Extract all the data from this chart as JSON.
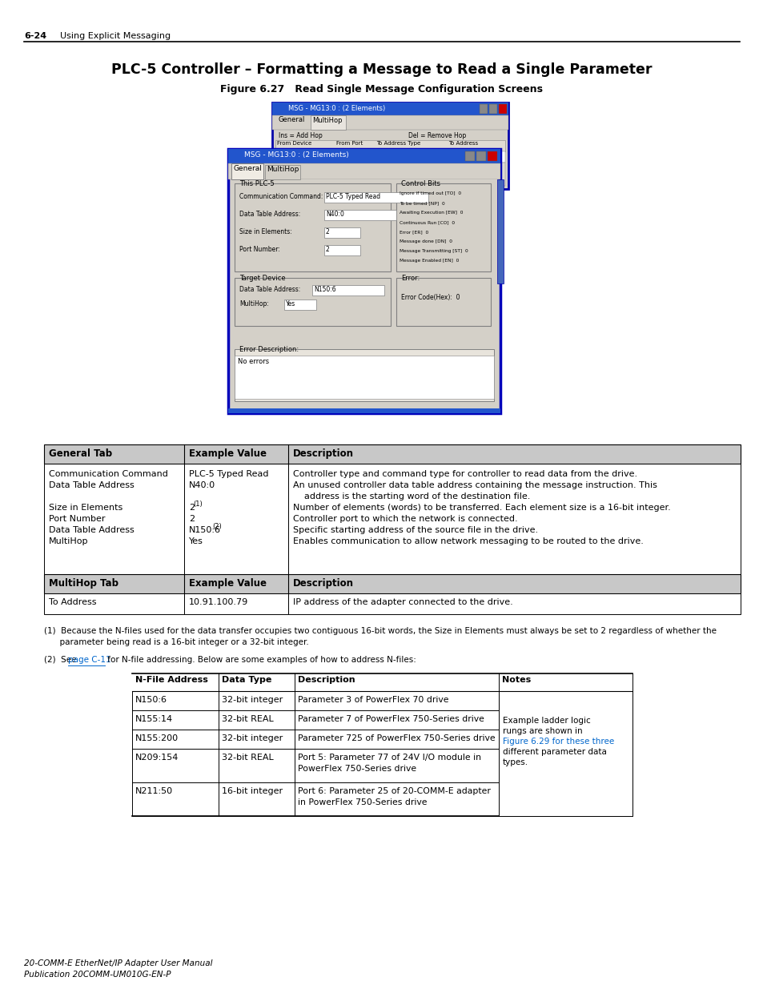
{
  "page_header_number": "6-24",
  "page_header_text": "Using Explicit Messaging",
  "main_title": "PLC-5 Controller – Formatting a Message to Read a Single Parameter",
  "figure_label": "Figure 6.27   Read Single Message Configuration Screens",
  "table1_headers": [
    "General Tab",
    "Example Value",
    "Description"
  ],
  "table1_row1_col1": [
    "Communication Command",
    "Data Table Address",
    "",
    "Size in Elements",
    "Port Number",
    "Data Table Address",
    "MultiHop"
  ],
  "table1_row1_col2_base": [
    "PLC-5 Typed Read",
    "N40:0",
    "",
    "2",
    "2",
    "N150:6",
    "Yes"
  ],
  "table1_row1_col2_sup": [
    "",
    "",
    "",
    "(1)",
    "",
    "(2)",
    ""
  ],
  "table1_row1_col3": [
    "Controller type and command type for controller to read data from the drive.",
    "An unused controller data table address containing the message instruction. This",
    "    address is the starting word of the destination file.",
    "Number of elements (words) to be transferred. Each element size is a 16-bit integer.",
    "Controller port to which the network is connected.",
    "Specific starting address of the source file in the drive.",
    "Enables communication to allow network messaging to be routed to the drive."
  ],
  "table1_row2_headers": [
    "MultiHop Tab",
    "Example Value",
    "Description"
  ],
  "table1_row2": [
    "To Address",
    "10.91.100.79",
    "IP address of the adapter connected to the drive."
  ],
  "footnote1_lines": [
    "(1)  Because the N-files used for the data transfer occupies two contiguous 16-bit words, the Size in Elements must always be set to 2 regardless of whether the",
    "      parameter being read is a 16-bit integer or a 32-bit integer."
  ],
  "footnote2_prefix": "(2)  See ",
  "footnote2_link": "page C-11",
  "footnote2_suffix": " for N-file addressing. Below are some examples of how to address N-files:",
  "table2_headers": [
    "N-File Address",
    "Data Type",
    "Description",
    "Notes"
  ],
  "table2_rows": [
    [
      "N150:6",
      "32-bit integer",
      "Parameter 3 of PowerFlex 70 drive",
      ""
    ],
    [
      "N155:14",
      "32-bit REAL",
      "Parameter 7 of PowerFlex 750-Series drive",
      "Example ladder logic\nrungs are shown in\nFigure 6.29 for these three\ndifferent parameter data\ntypes."
    ],
    [
      "N155:200",
      "32-bit integer",
      "Parameter 725 of PowerFlex 750-Series drive",
      ""
    ],
    [
      "N209:154",
      "32-bit REAL",
      "Port 5: Parameter 77 of 24V I/O module in\nPowerFlex 750-Series drive",
      ""
    ],
    [
      "N211:50",
      "16-bit integer",
      "Port 6: Parameter 25 of 20-COMM-E adapter\nin PowerFlex 750-Series drive",
      ""
    ]
  ],
  "footer_line1": "20-COMM-E EtherNet/IP Adapter User Manual",
  "footer_line2": "Publication 20COMM-UM010G-EN-P",
  "blue_link": "#0066cc",
  "title_bar_blue": "#2255cc",
  "win_bg": "#d4d0c8",
  "white": "#ffffff",
  "black": "#000000"
}
